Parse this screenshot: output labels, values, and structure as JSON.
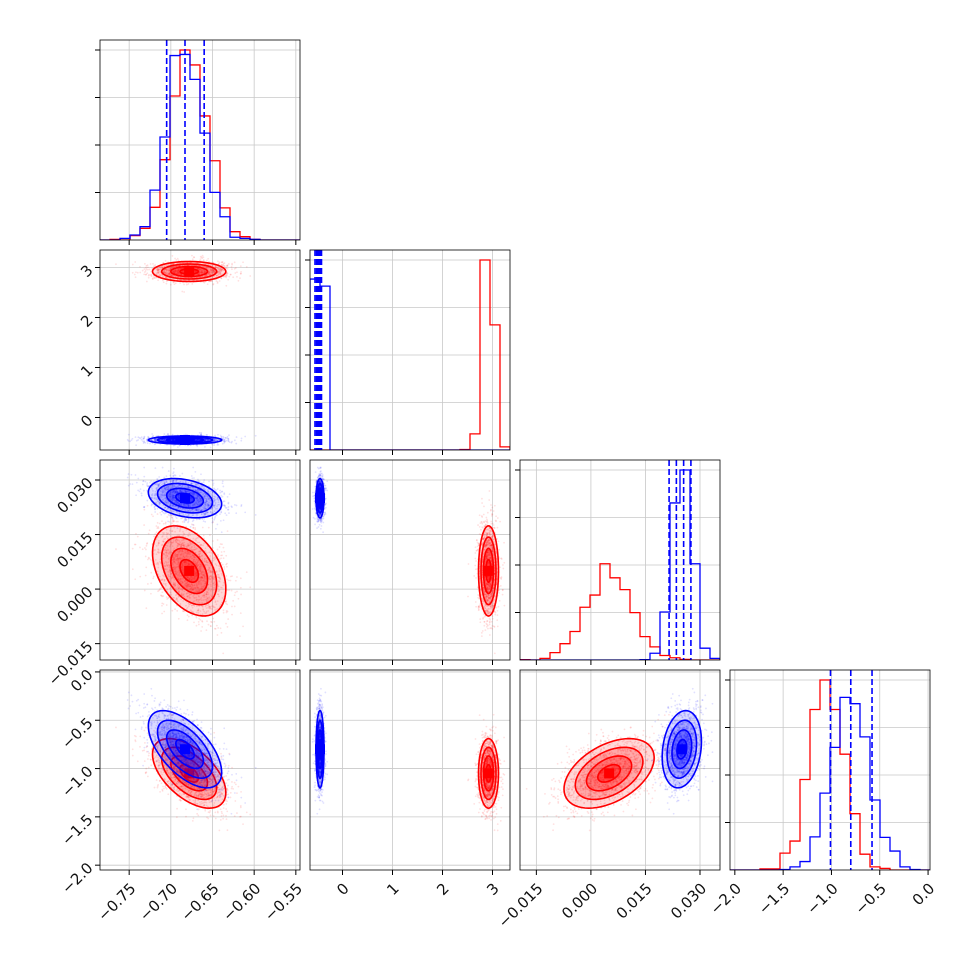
{
  "colors": {
    "red": "#ff0000",
    "blue": "#0000ff",
    "grid": "#c8c8c8",
    "axis": "#000000"
  },
  "chart_data": {
    "type": "corner",
    "grid": true,
    "parameters": [
      {
        "range": [
          -0.785,
          -0.545
        ],
        "ticks": [
          -0.75,
          -0.7,
          -0.65,
          -0.6,
          -0.55
        ],
        "tick_labels": [
          "−0.75",
          "−0.70",
          "−0.65",
          "−0.60",
          "−0.55"
        ]
      },
      {
        "range": [
          -0.65,
          3.35
        ],
        "ticks": [
          0,
          1,
          2,
          3
        ],
        "tick_labels": [
          "0",
          "1",
          "2",
          "3"
        ]
      },
      {
        "range": [
          -0.0195,
          0.0355
        ],
        "ticks": [
          -0.015,
          0.0,
          0.015,
          0.03
        ],
        "tick_labels": [
          "−0.015",
          "0.000",
          "0.015",
          "0.030"
        ]
      },
      {
        "range": [
          -2.05,
          0.02
        ],
        "ticks": [
          -2.0,
          -1.5,
          -1.0,
          -0.5,
          0.0
        ],
        "tick_labels": [
          "−2.0",
          "−1.5",
          "−1.0",
          "−0.5",
          "0.0"
        ]
      }
    ],
    "series": [
      {
        "name": "",
        "color": "#ff0000",
        "mean": [
          -0.678,
          2.92,
          0.005,
          -1.05
        ],
        "sd": [
          0.022,
          0.1,
          0.0062,
          0.18
        ],
        "corr": [
          [
            0,
            2,
            -0.4
          ],
          [
            0,
            3,
            -0.55
          ],
          [
            2,
            3,
            0.45
          ]
        ]
      },
      {
        "name": "",
        "color": "#0000ff",
        "mean": [
          -0.683,
          -0.45,
          0.025,
          -0.8
        ],
        "sd": [
          0.022,
          0.04,
          0.0027,
          0.2
        ],
        "corr": [
          [
            0,
            2,
            -0.3
          ],
          [
            0,
            3,
            -0.6
          ],
          [
            2,
            3,
            0.2
          ]
        ]
      }
    ],
    "quantiles": {
      "series": "blue",
      "values": [
        [
          -0.705,
          -0.683,
          -0.66
        ],
        [
          -0.55,
          -0.52,
          -0.5,
          -0.48,
          -0.46,
          -0.44,
          -0.42
        ],
        [
          0.0215,
          0.0235,
          0.0255,
          0.0275
        ],
        [
          -1.01,
          -0.8,
          -0.58
        ]
      ]
    },
    "contour_levels": [
      0.5,
      1.0,
      1.5,
      2.0
    ]
  }
}
